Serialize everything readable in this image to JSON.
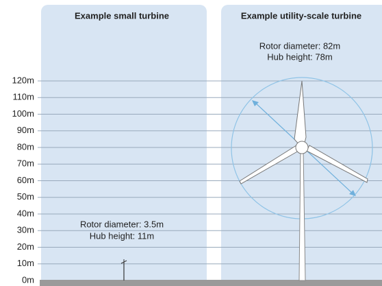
{
  "panels": [
    {
      "title": "Example small turbine",
      "annotation": [
        "Rotor diameter: 3.5m",
        "Hub height: 11m"
      ]
    },
    {
      "title": "Example utility-scale turbine",
      "annotation": [
        "Rotor diameter: 82m",
        "Hub height: 78m"
      ]
    }
  ],
  "height_labels": [
    "0m",
    "10m",
    "20m",
    "30m",
    "40m",
    "50m",
    "60m",
    "70m",
    "80m",
    "90m",
    "100m",
    "110m",
    "120m"
  ]
}
